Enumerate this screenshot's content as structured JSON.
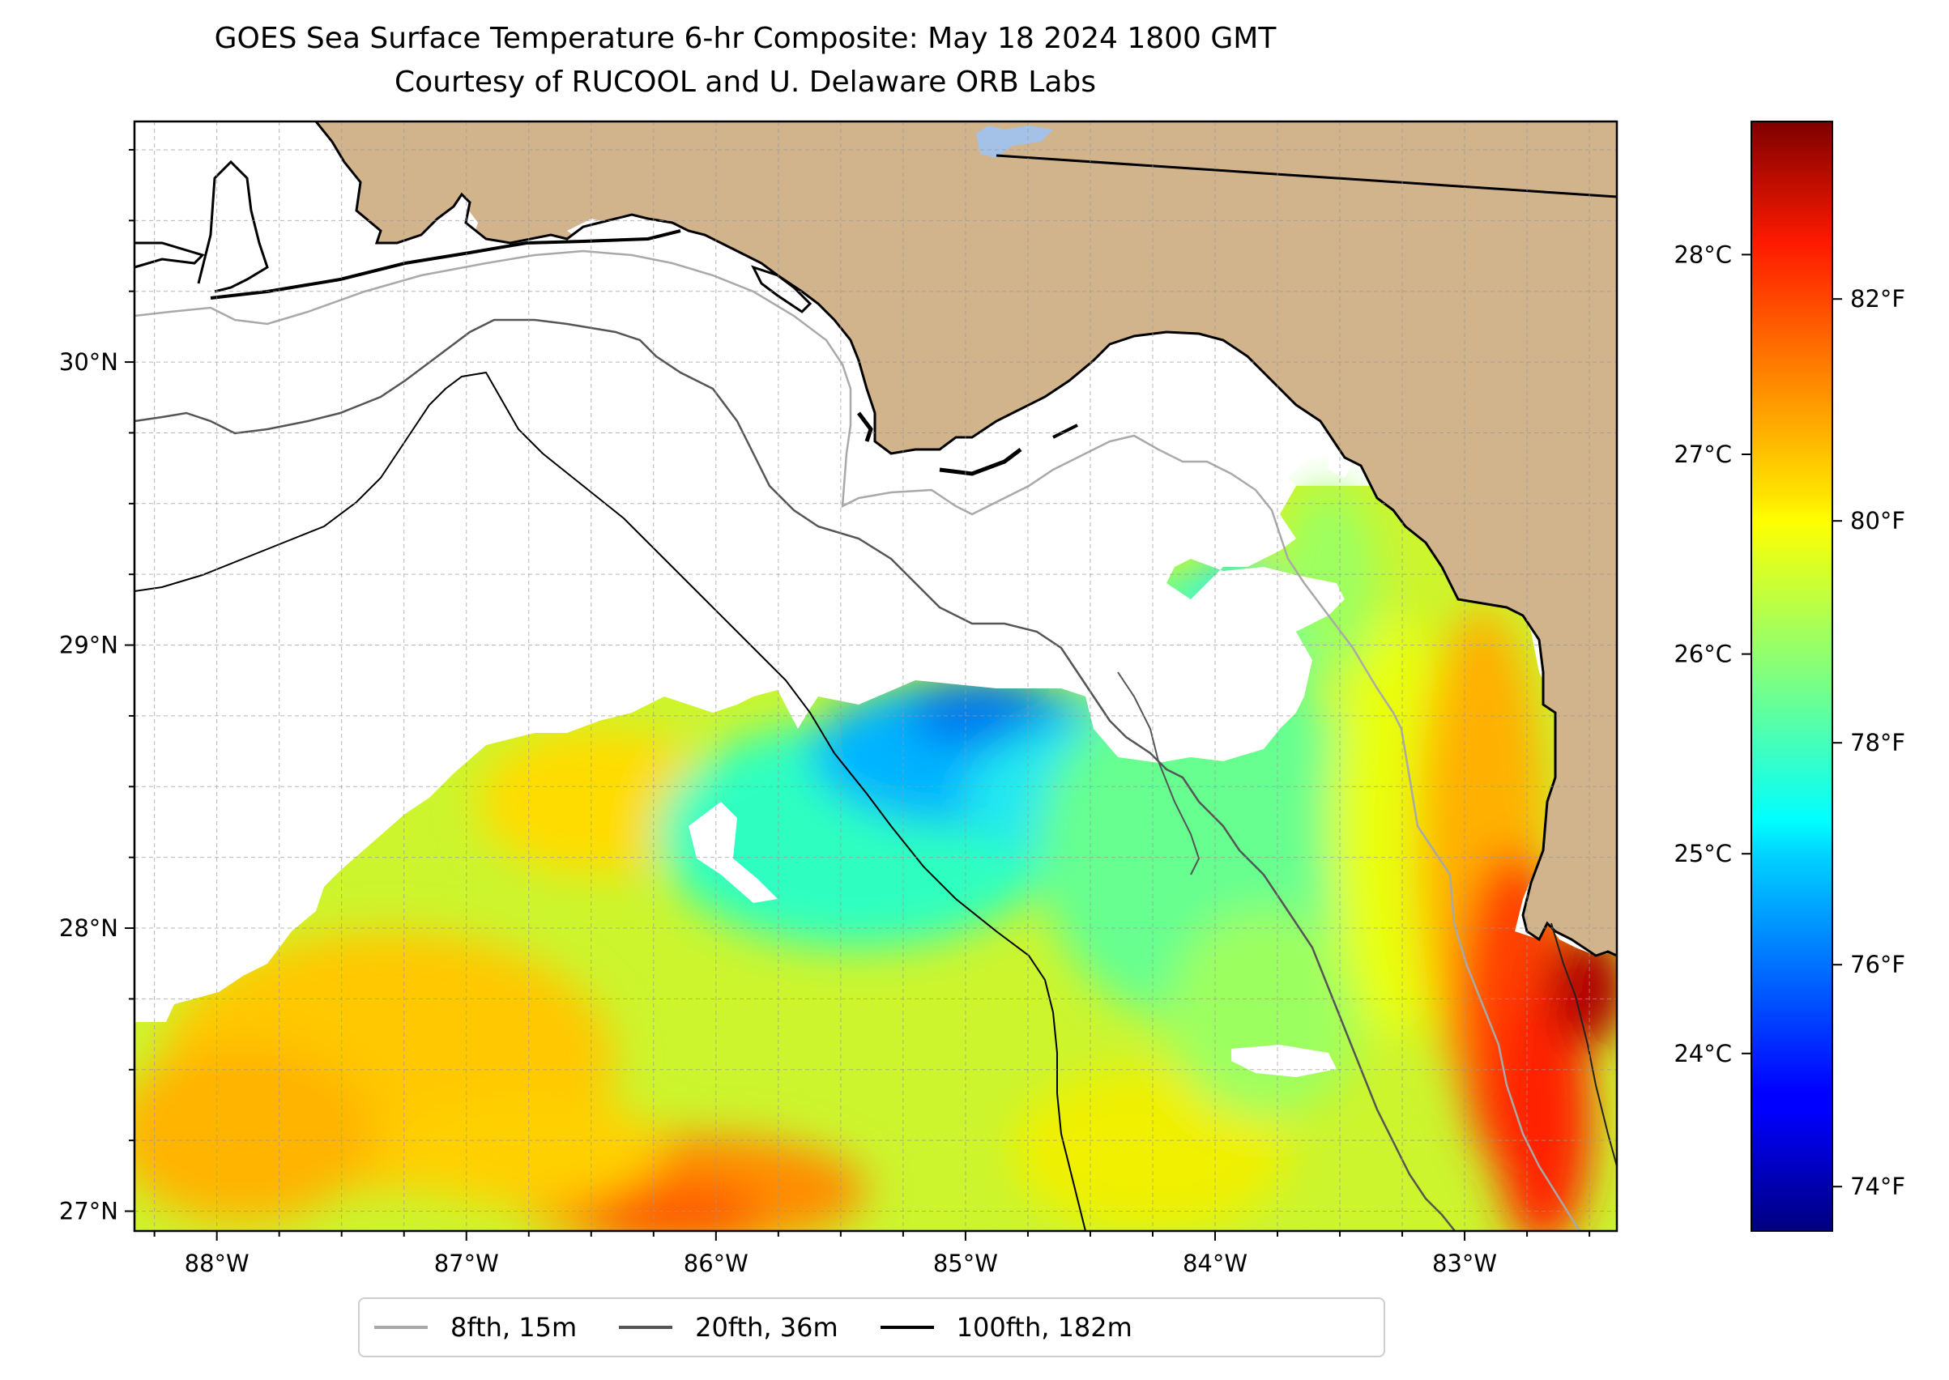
{
  "title": {
    "line1": "GOES Sea Surface Temperature 6-hr Composite: May 18 2024 1800 GMT",
    "line2": "Courtesy of RUCOOL and U. Delaware ORB Labs"
  },
  "map": {
    "extent": {
      "lon_min": -88.33,
      "lon_max": -82.39,
      "lat_min": 26.93,
      "lat_max": 30.85
    },
    "lon_ticks": [
      {
        "value": -88,
        "label": "88°W"
      },
      {
        "value": -87,
        "label": "87°W"
      },
      {
        "value": -86,
        "label": "86°W"
      },
      {
        "value": -85,
        "label": "85°W"
      },
      {
        "value": -84,
        "label": "84°W"
      },
      {
        "value": -83,
        "label": "83°W"
      }
    ],
    "lat_ticks": [
      {
        "value": 27,
        "label": "27°N"
      },
      {
        "value": 28,
        "label": "28°N"
      },
      {
        "value": 29,
        "label": "29°N"
      },
      {
        "value": 30,
        "label": "30°N"
      }
    ],
    "gridlines": true,
    "colors": {
      "land": "#d2b48c",
      "no_data": "#ffffff",
      "lake": "#a4c1e8",
      "coast": "#000000"
    }
  },
  "colorbar": {
    "cmap": "jet",
    "range_f": [
      73.6,
      83.6
    ],
    "fahrenheit_ticks": [
      {
        "value": 74,
        "label": "74°F"
      },
      {
        "value": 76,
        "label": "76°F"
      },
      {
        "value": 78,
        "label": "78°F"
      },
      {
        "value": 80,
        "label": "80°F"
      },
      {
        "value": 82,
        "label": "82°F"
      }
    ],
    "celsius_ticks": [
      {
        "value": 24,
        "label": "24°C"
      },
      {
        "value": 25,
        "label": "25°C"
      },
      {
        "value": 26,
        "label": "26°C"
      },
      {
        "value": 27,
        "label": "27°C"
      },
      {
        "value": 28,
        "label": "28°C"
      }
    ]
  },
  "legend": {
    "items": [
      {
        "label": "8fth, 15m",
        "color": "#a9a9a9"
      },
      {
        "label": "20fth, 36m",
        "color": "#555555"
      },
      {
        "label": "100fth, 182m",
        "color": "#000000"
      }
    ]
  }
}
